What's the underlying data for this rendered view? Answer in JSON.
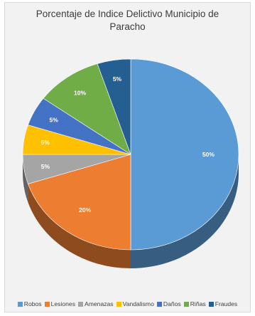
{
  "chart_data": {
    "type": "pie",
    "title_lines": [
      "Porcentaje  de Indice Delictivo Municipio de",
      "Paracho"
    ],
    "categories": [
      "Robos",
      "Lesiones",
      "Amenazas",
      "Vandalismo",
      "Daños",
      "Riñas",
      "Fraudes"
    ],
    "values": [
      50,
      20,
      5,
      5,
      5,
      10,
      5
    ],
    "data_labels": [
      "50%",
      "20%",
      "5%",
      "5%",
      "5%",
      "10%",
      "5%"
    ],
    "colors": [
      "#5b9bd5",
      "#ed7d31",
      "#a5a5a5",
      "#ffc000",
      "#4472c4",
      "#70ad47",
      "#255e91"
    ],
    "legend_position": "bottom"
  }
}
